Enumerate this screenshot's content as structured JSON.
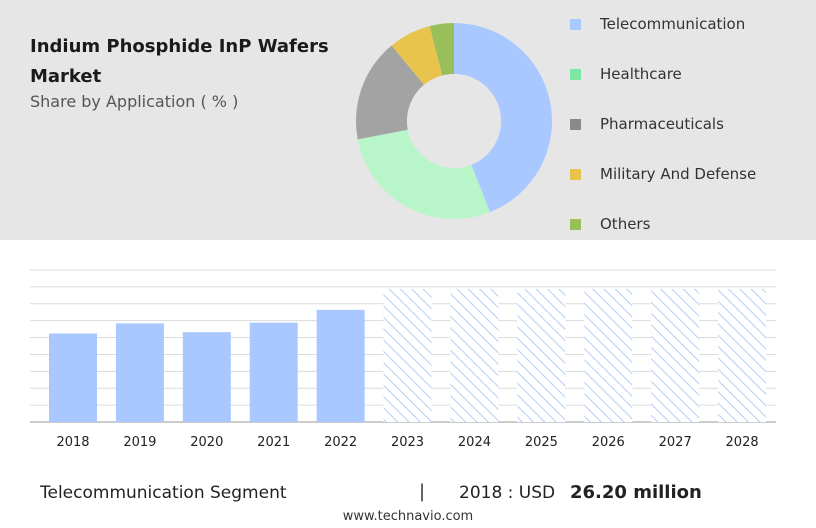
{
  "header": {
    "title": "Indium Phosphide InP Wafers Market",
    "subtitle": "Share by Application ( % )"
  },
  "legend": [
    {
      "label": "Telecommunication",
      "color": "#a8c8ff"
    },
    {
      "label": "Healthcare",
      "color": "#7ee8a2"
    },
    {
      "label": "Pharmaceuticals",
      "color": "#8a8a8a"
    },
    {
      "label": "Military And Defense",
      "color": "#e8c44e"
    },
    {
      "label": "Others",
      "color": "#98bf5a"
    }
  ],
  "footer": {
    "segment": "Telecommunication Segment",
    "separator": "|",
    "year_label": "2018 : USD",
    "value": "26.20 million",
    "source": "www.technavio.com"
  },
  "chart_data": [
    {
      "type": "pie",
      "donut": true,
      "title": "Share by Application ( % )",
      "categories": [
        "Telecommunication",
        "Healthcare",
        "Pharmaceuticals",
        "Military And Defense",
        "Others"
      ],
      "values": [
        44,
        28,
        17,
        7,
        4
      ],
      "colors": [
        "#a8c8ff",
        "#b8f5c8",
        "#a3a3a3",
        "#e8c44e",
        "#98bf5a"
      ]
    },
    {
      "type": "bar",
      "categories": [
        "2018",
        "2019",
        "2020",
        "2021",
        "2022",
        "2023",
        "2024",
        "2025",
        "2026",
        "2027",
        "2028"
      ],
      "values": [
        26.2,
        29.2,
        26.6,
        29.4,
        33.2,
        39.4,
        39.4,
        39.4,
        39.4,
        39.4,
        39.4
      ],
      "forecast_from": "2023",
      "forecast_style": "hatched",
      "bar_color": "#a8c8ff",
      "ylim": [
        0,
        45
      ],
      "grid": true,
      "xlabel": "",
      "ylabel": ""
    }
  ]
}
